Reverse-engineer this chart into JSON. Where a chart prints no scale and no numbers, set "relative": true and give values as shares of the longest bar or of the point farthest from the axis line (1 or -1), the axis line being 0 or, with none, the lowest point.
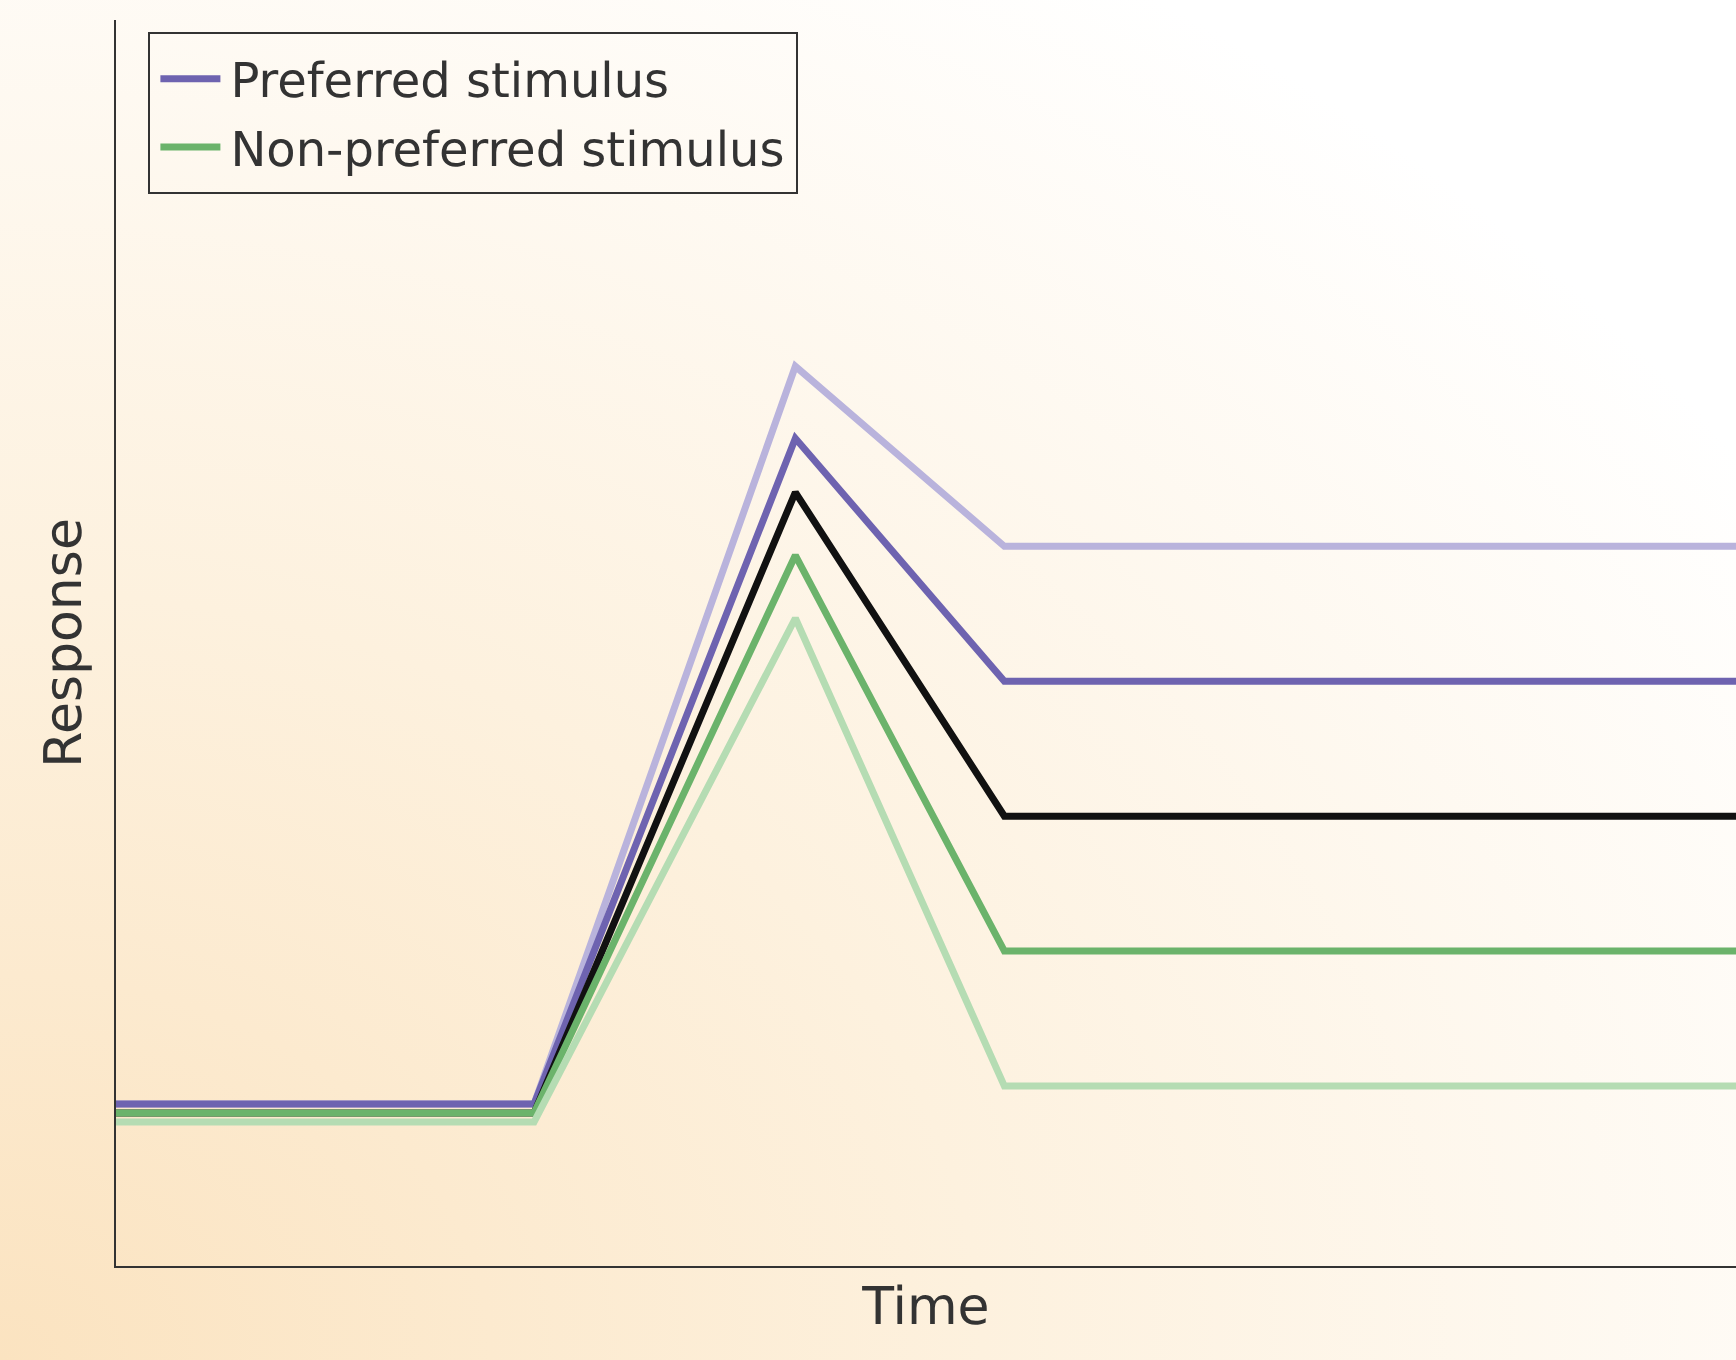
{
  "chart_data": {
    "type": "line",
    "relative": true,
    "xlabel": "Time",
    "ylabel": "Response",
    "legend": "top left",
    "grid": false,
    "marker": "none",
    "line_style": "solid",
    "categories": [
      null,
      null,
      null,
      null,
      null,
      null,
      null,
      null,
      null,
      null,
      null,
      null,
      null,
      null,
      null,
      null,
      null,
      null,
      null,
      null,
      null,
      null,
      null,
      null,
      null,
      null,
      null,
      null,
      null,
      null,
      null,
      null
    ],
    "series": [
      {
        "color": "#b9b3dc",
        "values": [
          0.18,
          null,
          null,
          null,
          null,
          null,
          null,
          null,
          0.18,
          null,
          null,
          null,
          null,
          1.0,
          null,
          null,
          null,
          0.8,
          null,
          null,
          null,
          null,
          null,
          null,
          null,
          null,
          null,
          null,
          null,
          null,
          null,
          0.8
        ]
      },
      {
        "name": "Preferred stimulus",
        "color": "#6e63b0",
        "values": [
          0.18,
          null,
          null,
          null,
          null,
          null,
          null,
          null,
          0.18,
          null,
          null,
          null,
          null,
          0.92,
          null,
          null,
          null,
          0.65,
          null,
          null,
          null,
          null,
          null,
          null,
          null,
          null,
          null,
          null,
          null,
          null,
          null,
          0.65
        ]
      },
      {
        "color": "#111111",
        "values": [
          0.17,
          null,
          null,
          null,
          null,
          null,
          null,
          null,
          0.17,
          null,
          null,
          null,
          null,
          0.86,
          null,
          null,
          null,
          0.5,
          null,
          null,
          null,
          null,
          null,
          null,
          null,
          null,
          null,
          null,
          null,
          null,
          null,
          0.5
        ]
      },
      {
        "name": "Non-preferred stimulus",
        "color": "#6bb36b",
        "values": [
          0.17,
          null,
          null,
          null,
          null,
          null,
          null,
          null,
          0.17,
          null,
          null,
          null,
          null,
          0.79,
          null,
          null,
          null,
          0.35,
          null,
          null,
          null,
          null,
          null,
          null,
          null,
          null,
          null,
          null,
          null,
          null,
          null,
          0.35
        ]
      },
      {
        "color": "#b5dcb3",
        "values": [
          0.16,
          null,
          null,
          null,
          null,
          null,
          null,
          null,
          0.16,
          null,
          null,
          null,
          null,
          0.72,
          null,
          null,
          null,
          0.2,
          null,
          null,
          null,
          null,
          null,
          null,
          null,
          null,
          null,
          null,
          null,
          null,
          null,
          0.2
        ]
      }
    ]
  }
}
